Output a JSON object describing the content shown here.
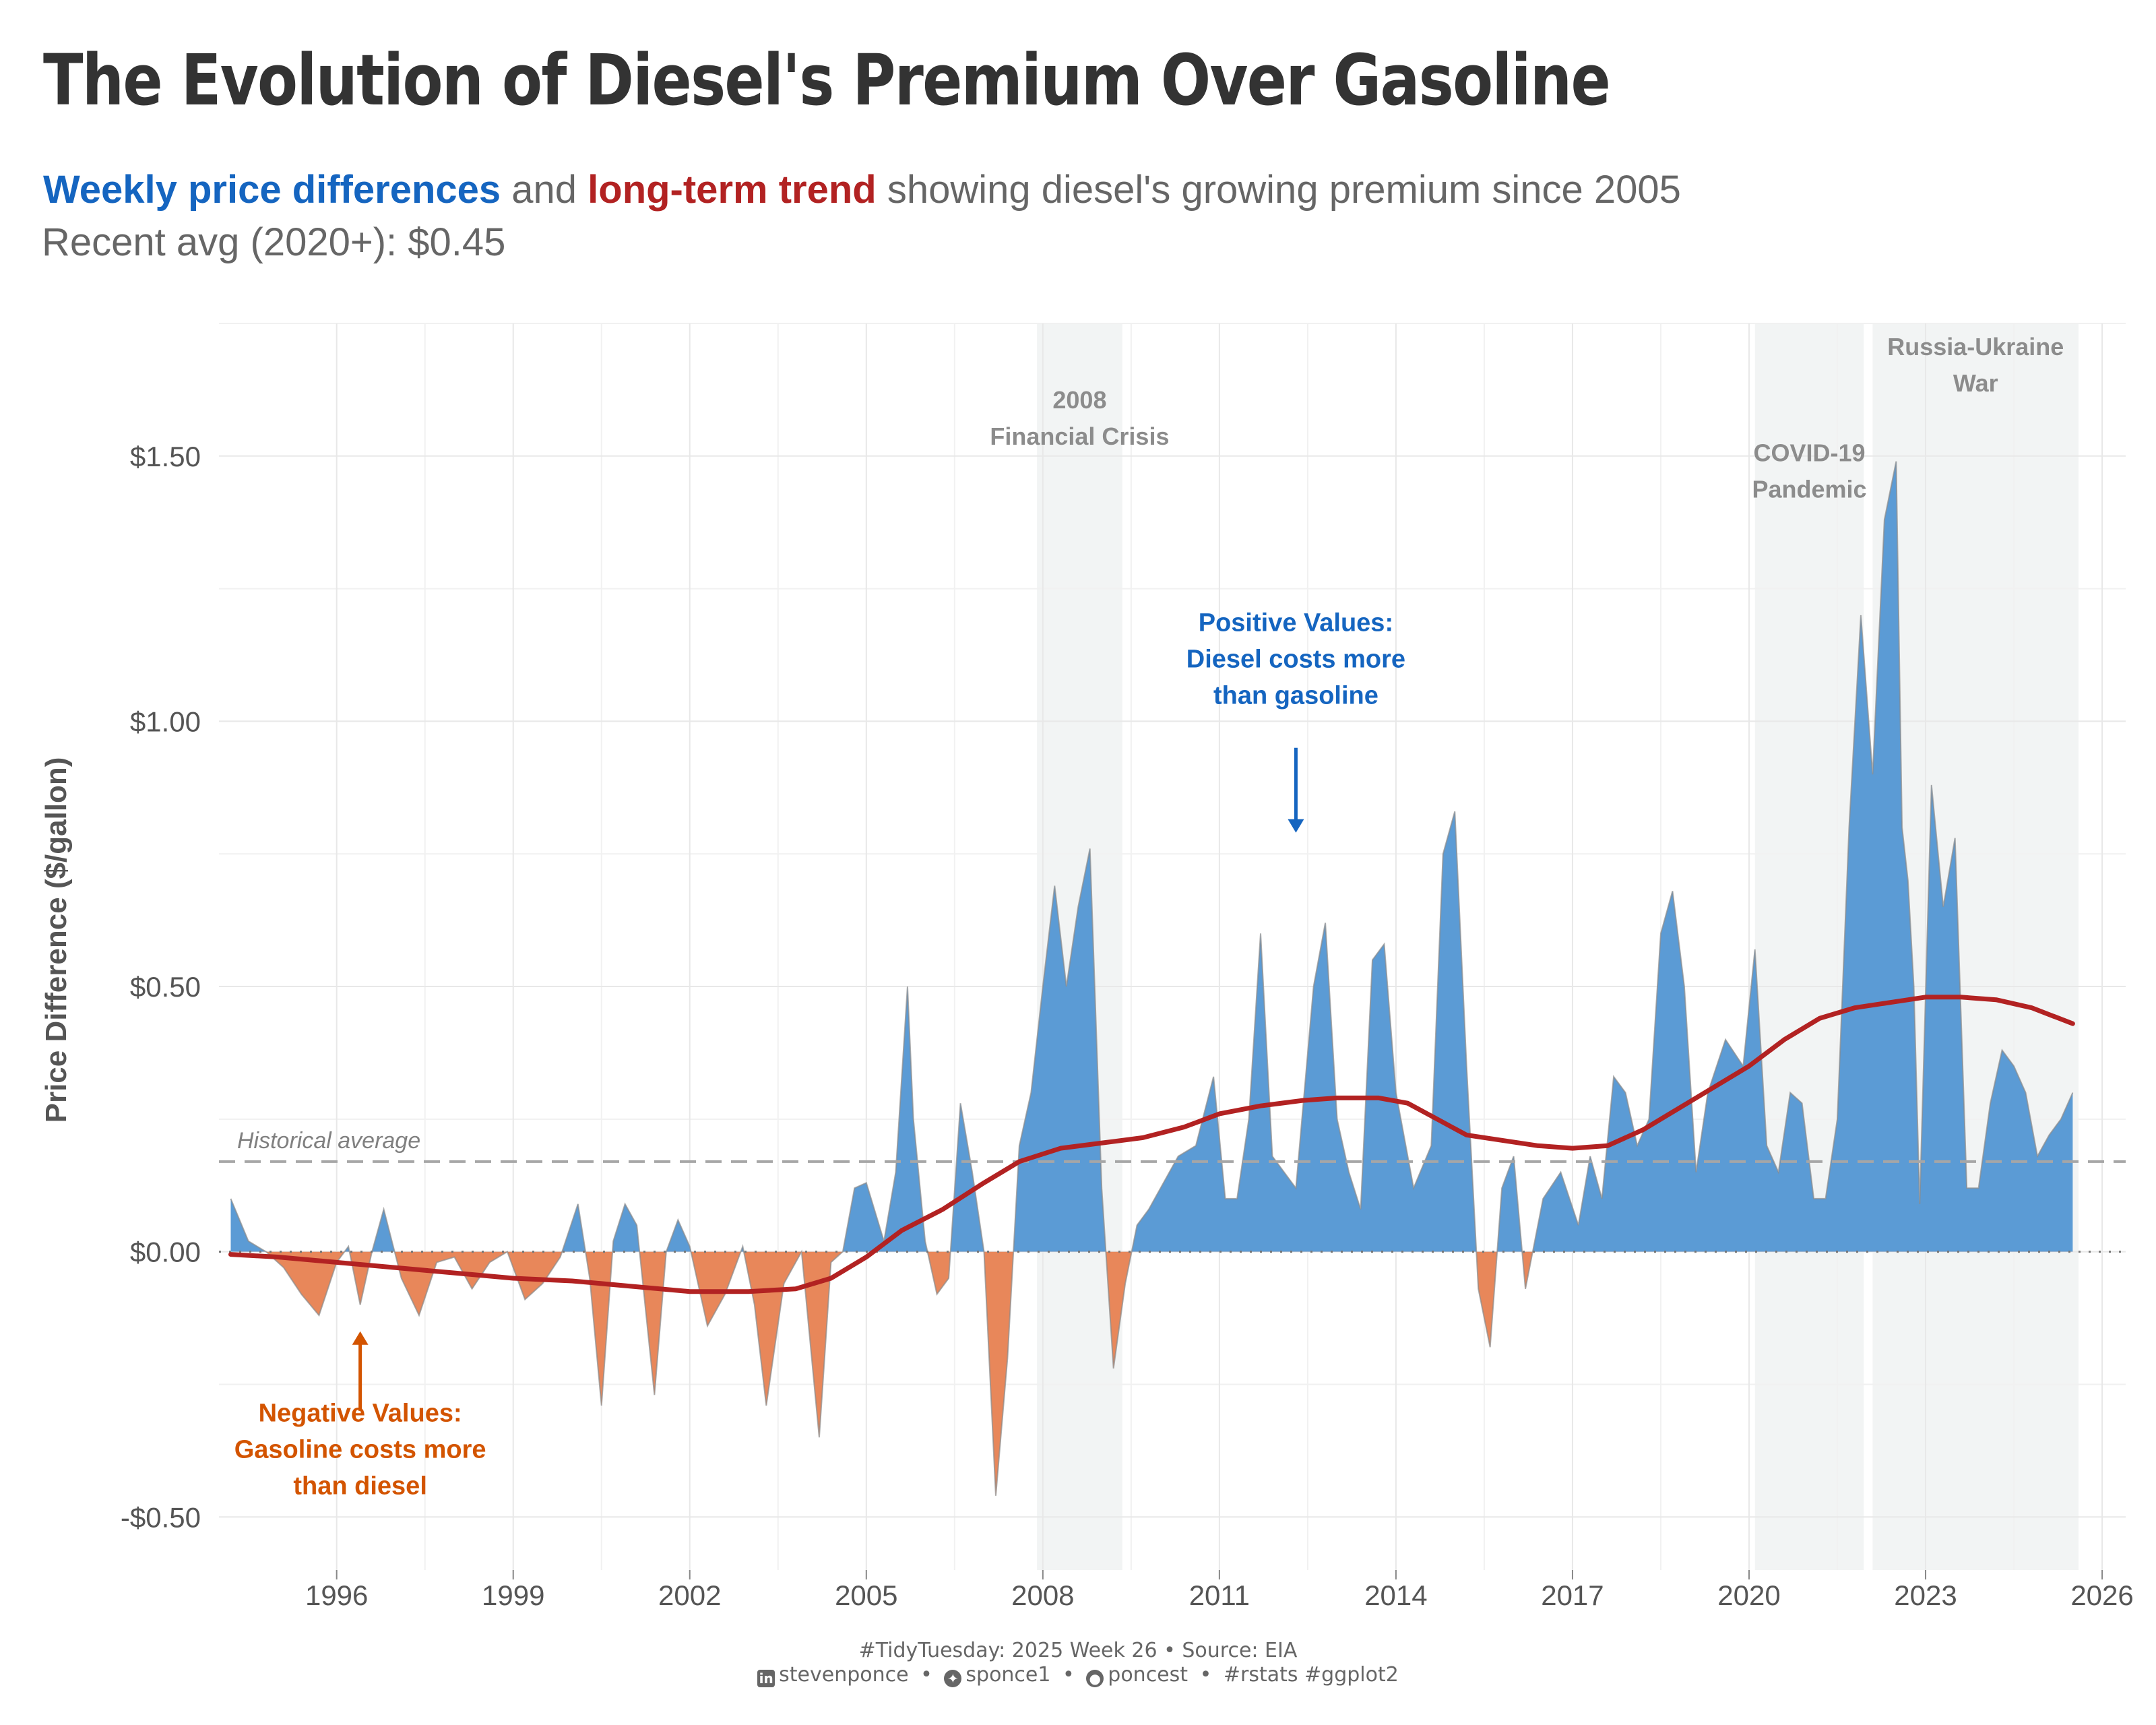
{
  "title": "The Evolution of Diesel's Premium Over Gasoline",
  "subtitle": {
    "part1": "Weekly price differences",
    "part2": " and ",
    "part3": "long-term trend",
    "part4": " showing diesel's growing premium since 2005",
    "line2": "Recent avg (2020+): $0.45"
  },
  "caption": {
    "line1": "#TidyTuesday: 2025 Week 26 • Source: EIA",
    "linkedin": "stevenponce",
    "bluesky": "sponce1",
    "github": "poncest",
    "tags": "#rstats #ggplot2",
    "sep": "•"
  },
  "colors": {
    "positive": "#5b9bd5",
    "negative": "#e8875a",
    "trend": "#b22222",
    "blue_text": "#1565c0",
    "orange_text": "#d35400",
    "shade": "#f2f4f4"
  },
  "chart_data": {
    "type": "area",
    "xlabel": "",
    "ylabel": "Price Difference ($/gallon)",
    "xlim": [
      1994.0,
      2026.4
    ],
    "ylim": [
      -0.6,
      1.75
    ],
    "x_ticks": [
      1996,
      1999,
      2002,
      2005,
      2008,
      2011,
      2014,
      2017,
      2020,
      2023,
      2026
    ],
    "y_ticks": [
      -0.5,
      0.0,
      0.5,
      1.0,
      1.5
    ],
    "y_tick_labels": [
      "-$0.50",
      "$0.00",
      "$0.50",
      "$1.00",
      "$1.50"
    ],
    "historical_average": 0.17,
    "historical_average_label": "Historical average",
    "shaded_periods": [
      {
        "start": 2007.9,
        "end": 2009.35,
        "label_line1": "2008",
        "label_line2": "Financial Crisis",
        "label_y": 1.59
      },
      {
        "start": 2020.1,
        "end": 2021.95,
        "label_line1": "COVID-19",
        "label_line2": "Pandemic",
        "label_y": 1.49
      },
      {
        "start": 2022.1,
        "end": 2025.6,
        "label_line1": "Russia-Ukraine",
        "label_line2": "War",
        "label_y": 1.69
      }
    ],
    "annotations": [
      {
        "line1": "Positive Values:",
        "line2": "Diesel costs more",
        "line3": "than gasoline",
        "x": 2012.3,
        "y": 1.17,
        "arrow_from": 0.95,
        "arrow_to": 0.79,
        "color": "#1565c0"
      },
      {
        "line1": "Negative Values:",
        "line2": "Gasoline costs more",
        "line3": "than diesel",
        "x": 1996.4,
        "y": -0.32,
        "arrow_from": -0.3,
        "arrow_to": -0.15,
        "color": "#d35400"
      }
    ],
    "series": [
      {
        "name": "Weekly price differences",
        "x": [
          1994.2,
          1994.5,
          1994.8,
          1995.1,
          1995.4,
          1995.7,
          1996.0,
          1996.2,
          1996.4,
          1996.6,
          1996.8,
          1997.1,
          1997.4,
          1997.7,
          1998.0,
          1998.3,
          1998.6,
          1998.9,
          1999.2,
          1999.5,
          1999.8,
          2000.1,
          2000.3,
          2000.5,
          2000.7,
          2000.9,
          2001.1,
          2001.4,
          2001.6,
          2001.8,
          2002.0,
          2002.3,
          2002.6,
          2002.9,
          2003.1,
          2003.3,
          2003.6,
          2003.9,
          2004.2,
          2004.4,
          2004.6,
          2004.8,
          2005.0,
          2005.3,
          2005.5,
          2005.7,
          2005.8,
          2006.0,
          2006.2,
          2006.4,
          2006.6,
          2006.8,
          2007.0,
          2007.2,
          2007.4,
          2007.6,
          2007.8,
          2008.0,
          2008.2,
          2008.4,
          2008.6,
          2008.8,
          2009.0,
          2009.2,
          2009.4,
          2009.6,
          2009.8,
          2010.0,
          2010.3,
          2010.6,
          2010.9,
          2011.1,
          2011.3,
          2011.5,
          2011.7,
          2011.9,
          2012.1,
          2012.3,
          2012.6,
          2012.8,
          2013.0,
          2013.2,
          2013.4,
          2013.6,
          2013.8,
          2014.0,
          2014.3,
          2014.6,
          2014.8,
          2015.0,
          2015.2,
          2015.4,
          2015.6,
          2015.8,
          2016.0,
          2016.2,
          2016.5,
          2016.8,
          2017.1,
          2017.3,
          2017.5,
          2017.7,
          2017.9,
          2018.1,
          2018.3,
          2018.5,
          2018.7,
          2018.9,
          2019.1,
          2019.3,
          2019.6,
          2019.9,
          2020.1,
          2020.3,
          2020.5,
          2020.7,
          2020.9,
          2021.1,
          2021.3,
          2021.5,
          2021.7,
          2021.9,
          2022.1,
          2022.3,
          2022.5,
          2022.6,
          2022.7,
          2022.8,
          2022.9,
          2023.1,
          2023.3,
          2023.5,
          2023.7,
          2023.9,
          2024.1,
          2024.3,
          2024.5,
          2024.7,
          2024.9,
          2025.1,
          2025.3,
          2025.5
        ],
        "values": [
          0.1,
          0.02,
          0.0,
          -0.03,
          -0.08,
          -0.12,
          -0.02,
          0.01,
          -0.1,
          0.0,
          0.08,
          -0.05,
          -0.12,
          -0.02,
          -0.01,
          -0.07,
          -0.02,
          0.0,
          -0.09,
          -0.06,
          -0.01,
          0.09,
          -0.05,
          -0.29,
          0.02,
          0.09,
          0.05,
          -0.27,
          0.0,
          0.06,
          0.01,
          -0.14,
          -0.08,
          0.01,
          -0.1,
          -0.29,
          -0.06,
          0.0,
          -0.35,
          -0.02,
          0.0,
          0.12,
          0.13,
          0.02,
          0.15,
          0.5,
          0.25,
          0.02,
          -0.08,
          -0.05,
          0.28,
          0.15,
          0.0,
          -0.46,
          -0.2,
          0.2,
          0.3,
          0.5,
          0.69,
          0.5,
          0.65,
          0.76,
          0.12,
          -0.22,
          -0.06,
          0.05,
          0.08,
          0.12,
          0.18,
          0.2,
          0.33,
          0.1,
          0.1,
          0.25,
          0.6,
          0.18,
          0.15,
          0.12,
          0.5,
          0.62,
          0.25,
          0.15,
          0.08,
          0.55,
          0.58,
          0.3,
          0.12,
          0.2,
          0.75,
          0.83,
          0.35,
          -0.07,
          -0.18,
          0.12,
          0.18,
          -0.07,
          0.1,
          0.15,
          0.05,
          0.18,
          0.1,
          0.33,
          0.3,
          0.2,
          0.25,
          0.6,
          0.68,
          0.5,
          0.15,
          0.3,
          0.4,
          0.35,
          0.57,
          0.2,
          0.15,
          0.3,
          0.28,
          0.1,
          0.1,
          0.25,
          0.8,
          1.2,
          0.9,
          1.38,
          1.49,
          0.8,
          0.7,
          0.5,
          0.09,
          0.88,
          0.65,
          0.78,
          0.12,
          0.12,
          0.28,
          0.38,
          0.35,
          0.3,
          0.18,
          0.22,
          0.25,
          0.3
        ]
      },
      {
        "name": "long-term trend",
        "x": [
          1994.2,
          1995.0,
          1996.0,
          1997.0,
          1998.0,
          1999.0,
          2000.0,
          2001.0,
          2002.0,
          2003.0,
          2003.8,
          2004.4,
          2005.0,
          2005.6,
          2006.3,
          2007.0,
          2007.6,
          2008.3,
          2009.0,
          2009.7,
          2010.4,
          2011.0,
          2011.7,
          2012.4,
          2013.0,
          2013.7,
          2014.2,
          2014.7,
          2015.2,
          2015.8,
          2016.4,
          2017.0,
          2017.6,
          2018.2,
          2018.8,
          2019.4,
          2020.0,
          2020.6,
          2021.2,
          2021.8,
          2022.4,
          2023.0,
          2023.6,
          2024.2,
          2024.8,
          2025.5
        ],
        "values": [
          -0.005,
          -0.01,
          -0.02,
          -0.03,
          -0.04,
          -0.05,
          -0.055,
          -0.065,
          -0.075,
          -0.075,
          -0.07,
          -0.05,
          -0.01,
          0.04,
          0.08,
          0.13,
          0.17,
          0.195,
          0.205,
          0.215,
          0.235,
          0.26,
          0.275,
          0.285,
          0.29,
          0.29,
          0.28,
          0.25,
          0.22,
          0.21,
          0.2,
          0.195,
          0.2,
          0.23,
          0.27,
          0.31,
          0.35,
          0.4,
          0.44,
          0.46,
          0.47,
          0.48,
          0.48,
          0.475,
          0.46,
          0.43
        ]
      }
    ]
  }
}
